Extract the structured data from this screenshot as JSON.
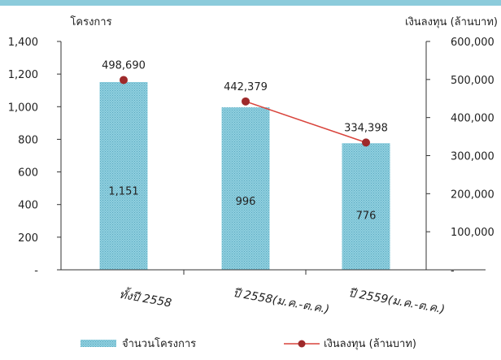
{
  "chart_data": {
    "type": "bar",
    "categories": [
      "ทั้งปี 2558",
      "ปี 2558(ม.ค.-ต.ค.)",
      "ปี 2559(ม.ค.-ต.ค.)"
    ],
    "y_left": {
      "label": "โครงการ",
      "lim": [
        0,
        1400
      ],
      "ticks": [
        "-",
        "200",
        "400",
        "600",
        "800",
        "1,000",
        "1,200",
        "1,400"
      ]
    },
    "y_right": {
      "label": "เงินลงทุน (ล้านบาท)",
      "lim": [
        0,
        600000
      ],
      "ticks": [
        "-",
        "100,000",
        "200,000",
        "300,000",
        "400,000",
        "500,000",
        "600,000"
      ]
    },
    "series": [
      {
        "name": "จำนวนโครงการ",
        "kind": "bar",
        "axis": "left",
        "values": [
          1151,
          996,
          776
        ],
        "labels": [
          "1,151",
          "996",
          "776"
        ],
        "color": "#8fcfdf"
      },
      {
        "name": "เงินลงทุน (ล้านบาท)",
        "kind": "line",
        "axis": "right",
        "values": [
          498690,
          442379,
          334398
        ],
        "labels": [
          "498,690",
          "442,379",
          "334,398"
        ],
        "color": "#9e2a2b",
        "line_color": "#d9443c",
        "connect_from": 1
      }
    ],
    "grid": false,
    "legend": "bottom"
  },
  "colors": {
    "header_bar": "#8ccbdb",
    "axis": "#333333"
  }
}
